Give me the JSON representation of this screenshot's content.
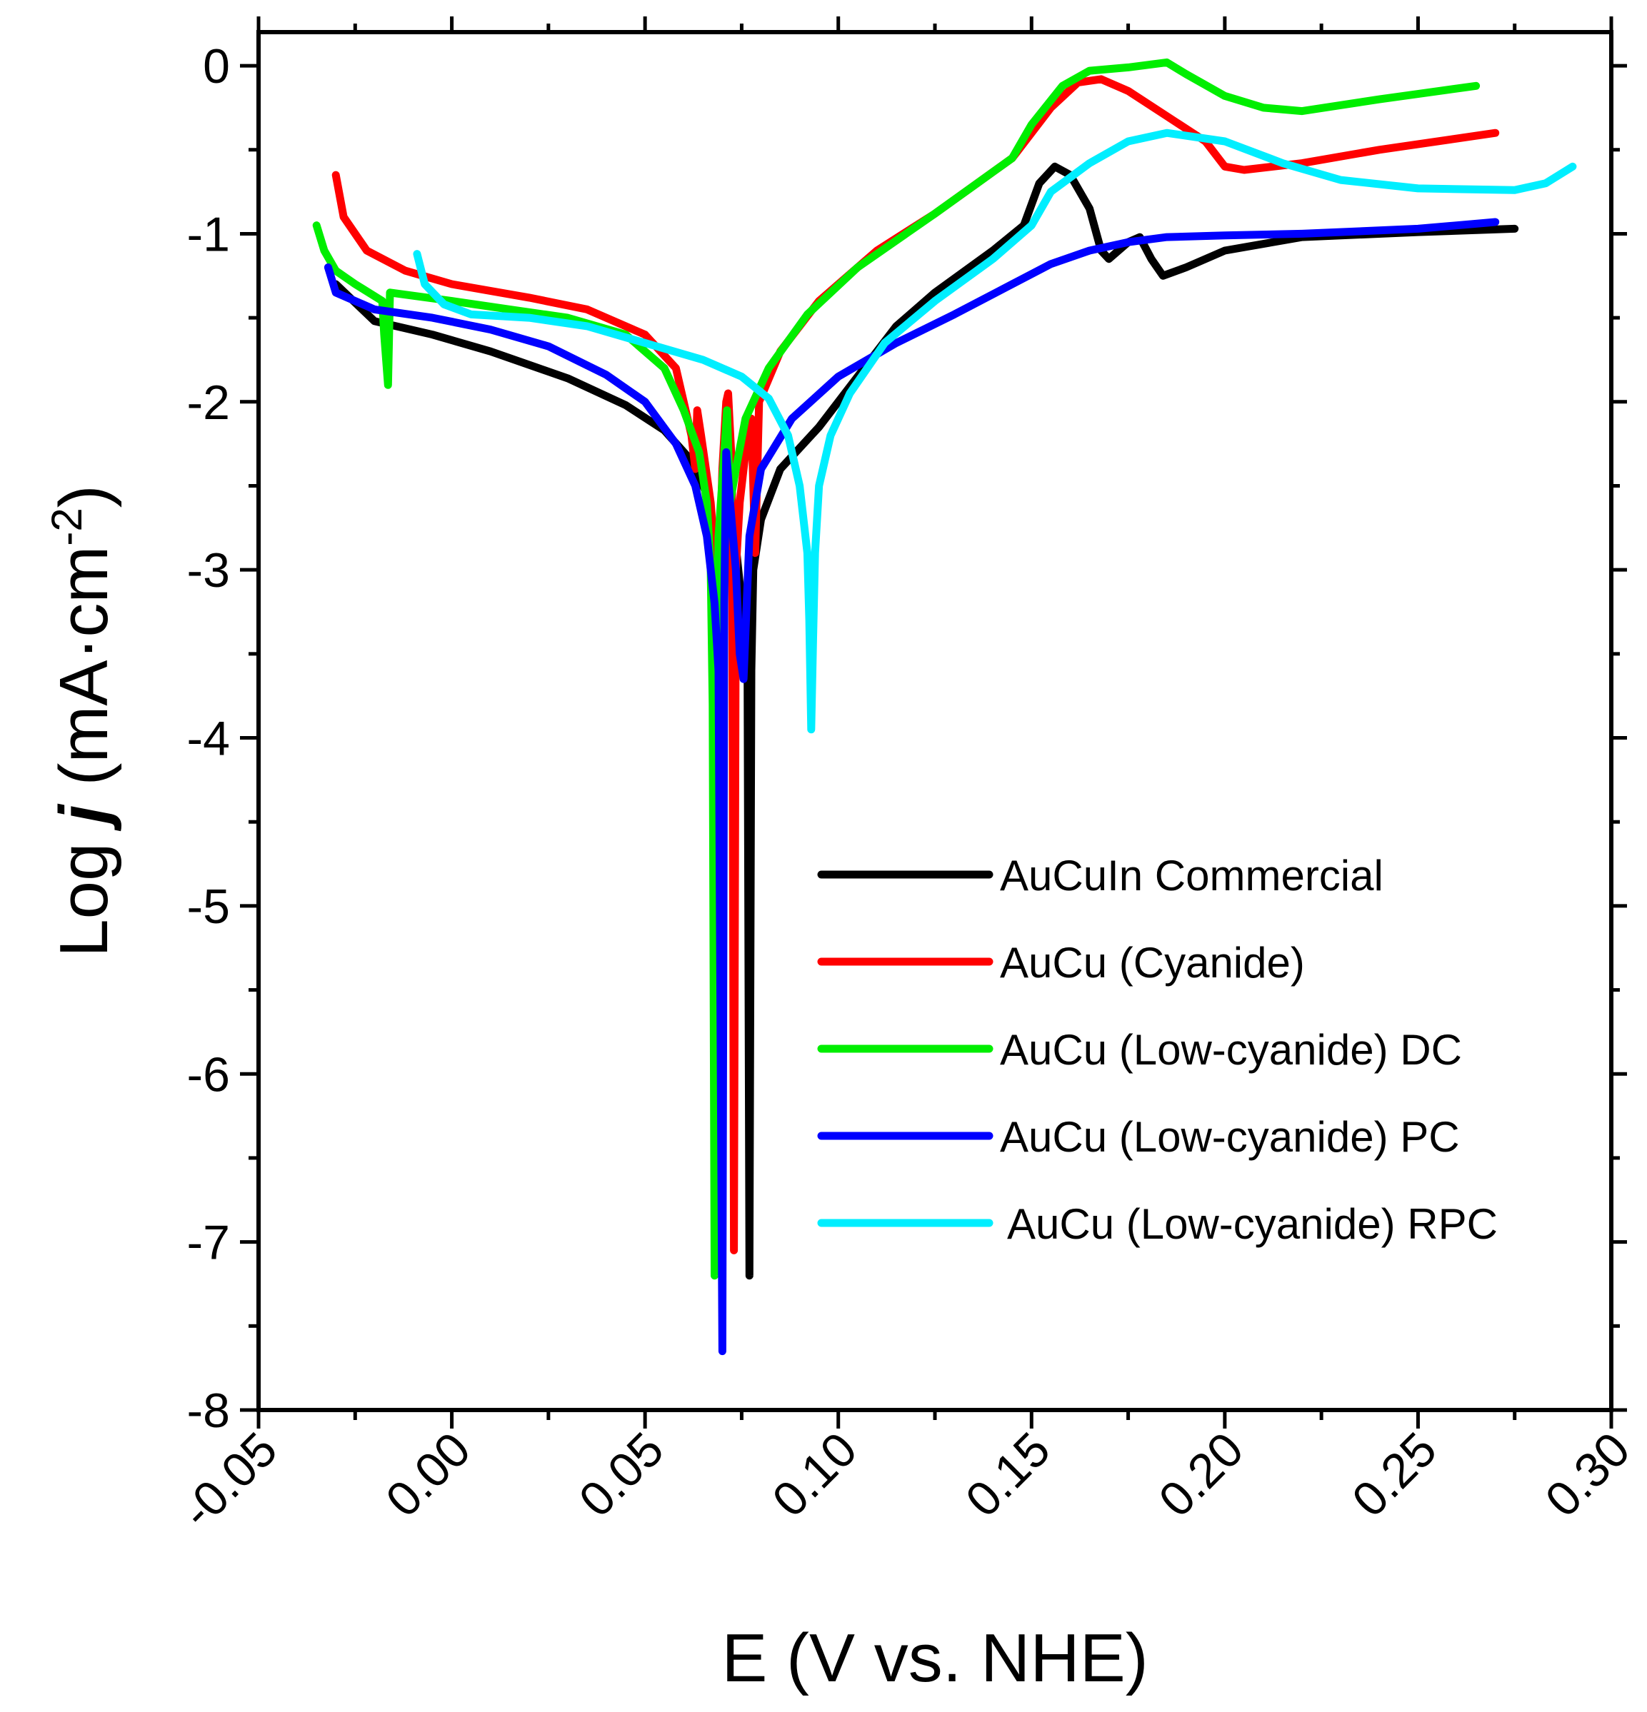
{
  "chart_data": {
    "type": "line",
    "title": "",
    "xlabel": "E (V vs. NHE)",
    "ylabel_parts": {
      "prefix": "Log ",
      "italic": "j",
      "unit": " (mA·cm",
      "sup": "-2",
      "close": ")"
    },
    "xlim": [
      -0.05,
      0.3
    ],
    "ylim": [
      -8,
      0.2
    ],
    "x_ticks": [
      -0.05,
      0.0,
      0.05,
      0.1,
      0.15,
      0.2,
      0.25,
      0.3
    ],
    "x_tick_labels": [
      "-0.05",
      "0.00",
      "0.05",
      "0.10",
      "0.15",
      "0.20",
      "0.25",
      "0.30"
    ],
    "y_ticks": [
      -8,
      -7,
      -6,
      -5,
      -4,
      -3,
      -2,
      -1,
      0
    ],
    "y_tick_labels": [
      "-8",
      "-7",
      "-6",
      "-5",
      "-4",
      "-3",
      "-2",
      "-1",
      "0"
    ],
    "grid": false,
    "legend_position": "lower-right",
    "series": [
      {
        "name": "AuCuIn Commercial",
        "color": "#000000",
        "points": [
          [
            -0.03,
            -1.3
          ],
          [
            -0.02,
            -1.52
          ],
          [
            -0.005,
            -1.6
          ],
          [
            0.01,
            -1.7
          ],
          [
            0.03,
            -1.86
          ],
          [
            0.045,
            -2.02
          ],
          [
            0.055,
            -2.17
          ],
          [
            0.062,
            -2.35
          ],
          [
            0.066,
            -2.55
          ],
          [
            0.068,
            -2.9
          ],
          [
            0.069,
            -3.4
          ],
          [
            0.0695,
            -2.8
          ],
          [
            0.07,
            -2.6
          ],
          [
            0.073,
            -2.75
          ],
          [
            0.0755,
            -3.3
          ],
          [
            0.0765,
            -3.4
          ],
          [
            0.077,
            -7.2
          ],
          [
            0.0775,
            -3.6
          ],
          [
            0.078,
            -3.0
          ],
          [
            0.08,
            -2.7
          ],
          [
            0.085,
            -2.4
          ],
          [
            0.095,
            -2.15
          ],
          [
            0.105,
            -1.85
          ],
          [
            0.115,
            -1.55
          ],
          [
            0.125,
            -1.35
          ],
          [
            0.14,
            -1.1
          ],
          [
            0.148,
            -0.95
          ],
          [
            0.152,
            -0.7
          ],
          [
            0.156,
            -0.6
          ],
          [
            0.16,
            -0.65
          ],
          [
            0.165,
            -0.85
          ],
          [
            0.168,
            -1.1
          ],
          [
            0.17,
            -1.15
          ],
          [
            0.175,
            -1.05
          ],
          [
            0.178,
            -1.02
          ],
          [
            0.181,
            -1.15
          ],
          [
            0.184,
            -1.25
          ],
          [
            0.19,
            -1.2
          ],
          [
            0.2,
            -1.1
          ],
          [
            0.22,
            -1.02
          ],
          [
            0.25,
            -0.99
          ],
          [
            0.275,
            -0.97
          ]
        ]
      },
      {
        "name": "AuCu (Cyanide)",
        "color": "#ff0000",
        "points": [
          [
            -0.03,
            -0.65
          ],
          [
            -0.028,
            -0.9
          ],
          [
            -0.022,
            -1.1
          ],
          [
            -0.012,
            -1.22
          ],
          [
            0.0,
            -1.3
          ],
          [
            0.02,
            -1.38
          ],
          [
            0.035,
            -1.45
          ],
          [
            0.05,
            -1.6
          ],
          [
            0.058,
            -1.8
          ],
          [
            0.062,
            -2.2
          ],
          [
            0.063,
            -2.4
          ],
          [
            0.0635,
            -2.05
          ],
          [
            0.0645,
            -2.2
          ],
          [
            0.067,
            -2.6
          ],
          [
            0.069,
            -3.2
          ],
          [
            0.07,
            -2.4
          ],
          [
            0.071,
            -2.0
          ],
          [
            0.0715,
            -1.95
          ],
          [
            0.0725,
            -2.4
          ],
          [
            0.073,
            -7.05
          ],
          [
            0.0735,
            -3.0
          ],
          [
            0.0745,
            -2.6
          ],
          [
            0.076,
            -2.3
          ],
          [
            0.0775,
            -2.1
          ],
          [
            0.0785,
            -2.9
          ],
          [
            0.0795,
            -2.0
          ],
          [
            0.085,
            -1.7
          ],
          [
            0.095,
            -1.4
          ],
          [
            0.11,
            -1.1
          ],
          [
            0.125,
            -0.88
          ],
          [
            0.145,
            -0.55
          ],
          [
            0.155,
            -0.25
          ],
          [
            0.162,
            -0.1
          ],
          [
            0.168,
            -0.08
          ],
          [
            0.175,
            -0.15
          ],
          [
            0.185,
            -0.3
          ],
          [
            0.195,
            -0.45
          ],
          [
            0.2,
            -0.6
          ],
          [
            0.205,
            -0.62
          ],
          [
            0.22,
            -0.58
          ],
          [
            0.24,
            -0.5
          ],
          [
            0.27,
            -0.4
          ]
        ]
      },
      {
        "name": "AuCu (Low-cyanide) DC",
        "color": "#00ee00",
        "points": [
          [
            -0.035,
            -0.95
          ],
          [
            -0.033,
            -1.1
          ],
          [
            -0.03,
            -1.22
          ],
          [
            -0.025,
            -1.3
          ],
          [
            -0.018,
            -1.4
          ],
          [
            -0.0175,
            -1.6
          ],
          [
            -0.0165,
            -1.9
          ],
          [
            -0.016,
            -1.35
          ],
          [
            0.0,
            -1.4
          ],
          [
            0.015,
            -1.45
          ],
          [
            0.03,
            -1.5
          ],
          [
            0.045,
            -1.6
          ],
          [
            0.055,
            -1.8
          ],
          [
            0.06,
            -2.05
          ],
          [
            0.064,
            -2.3
          ],
          [
            0.066,
            -2.6
          ],
          [
            0.067,
            -3.0
          ],
          [
            0.0675,
            -3.8
          ],
          [
            0.068,
            -7.2
          ],
          [
            0.0685,
            -3.4
          ],
          [
            0.069,
            -2.8
          ],
          [
            0.0705,
            -2.3
          ],
          [
            0.0712,
            -2.05
          ],
          [
            0.072,
            -2.6
          ],
          [
            0.0735,
            -2.4
          ],
          [
            0.076,
            -2.1
          ],
          [
            0.082,
            -1.8
          ],
          [
            0.092,
            -1.48
          ],
          [
            0.105,
            -1.2
          ],
          [
            0.125,
            -0.88
          ],
          [
            0.145,
            -0.55
          ],
          [
            0.15,
            -0.35
          ],
          [
            0.158,
            -0.12
          ],
          [
            0.165,
            -0.03
          ],
          [
            0.175,
            -0.01
          ],
          [
            0.185,
            0.02
          ],
          [
            0.19,
            -0.05
          ],
          [
            0.2,
            -0.18
          ],
          [
            0.21,
            -0.25
          ],
          [
            0.22,
            -0.27
          ],
          [
            0.24,
            -0.2
          ],
          [
            0.265,
            -0.12
          ]
        ]
      },
      {
        "name": "AuCu (Low-cyanide) PC",
        "color": "#0000ff",
        "points": [
          [
            -0.032,
            -1.2
          ],
          [
            -0.03,
            -1.35
          ],
          [
            -0.02,
            -1.45
          ],
          [
            -0.005,
            -1.5
          ],
          [
            0.01,
            -1.57
          ],
          [
            0.025,
            -1.67
          ],
          [
            0.04,
            -1.84
          ],
          [
            0.05,
            -2.0
          ],
          [
            0.058,
            -2.25
          ],
          [
            0.063,
            -2.5
          ],
          [
            0.066,
            -2.8
          ],
          [
            0.068,
            -3.2
          ],
          [
            0.069,
            -3.6
          ],
          [
            0.07,
            -7.65
          ],
          [
            0.0705,
            -3.2
          ],
          [
            0.071,
            -2.3
          ],
          [
            0.072,
            -2.6
          ],
          [
            0.0735,
            -3.0
          ],
          [
            0.0745,
            -3.5
          ],
          [
            0.0755,
            -3.65
          ],
          [
            0.077,
            -2.8
          ],
          [
            0.08,
            -2.4
          ],
          [
            0.088,
            -2.1
          ],
          [
            0.1,
            -1.85
          ],
          [
            0.115,
            -1.65
          ],
          [
            0.13,
            -1.48
          ],
          [
            0.145,
            -1.3
          ],
          [
            0.155,
            -1.18
          ],
          [
            0.165,
            -1.1
          ],
          [
            0.175,
            -1.05
          ],
          [
            0.185,
            -1.02
          ],
          [
            0.2,
            -1.01
          ],
          [
            0.22,
            -1.0
          ],
          [
            0.25,
            -0.97
          ],
          [
            0.27,
            -0.93
          ]
        ]
      },
      {
        "name": "AuCu (Low-cyanide) RPC",
        "color": "#00eeff",
        "points": [
          [
            -0.009,
            -1.12
          ],
          [
            -0.007,
            -1.3
          ],
          [
            -0.002,
            -1.42
          ],
          [
            0.005,
            -1.48
          ],
          [
            0.02,
            -1.5
          ],
          [
            0.035,
            -1.55
          ],
          [
            0.05,
            -1.65
          ],
          [
            0.065,
            -1.75
          ],
          [
            0.075,
            -1.85
          ],
          [
            0.082,
            -1.98
          ],
          [
            0.087,
            -2.2
          ],
          [
            0.09,
            -2.5
          ],
          [
            0.092,
            -2.9
          ],
          [
            0.0925,
            -3.3
          ],
          [
            0.093,
            -3.95
          ],
          [
            0.0935,
            -3.4
          ],
          [
            0.094,
            -2.9
          ],
          [
            0.095,
            -2.5
          ],
          [
            0.098,
            -2.2
          ],
          [
            0.103,
            -1.95
          ],
          [
            0.112,
            -1.65
          ],
          [
            0.125,
            -1.4
          ],
          [
            0.14,
            -1.15
          ],
          [
            0.15,
            -0.95
          ],
          [
            0.155,
            -0.75
          ],
          [
            0.165,
            -0.58
          ],
          [
            0.175,
            -0.45
          ],
          [
            0.185,
            -0.4
          ],
          [
            0.2,
            -0.45
          ],
          [
            0.215,
            -0.58
          ],
          [
            0.23,
            -0.68
          ],
          [
            0.25,
            -0.73
          ],
          [
            0.275,
            -0.74
          ],
          [
            0.283,
            -0.7
          ],
          [
            0.29,
            -0.6
          ]
        ]
      }
    ]
  }
}
